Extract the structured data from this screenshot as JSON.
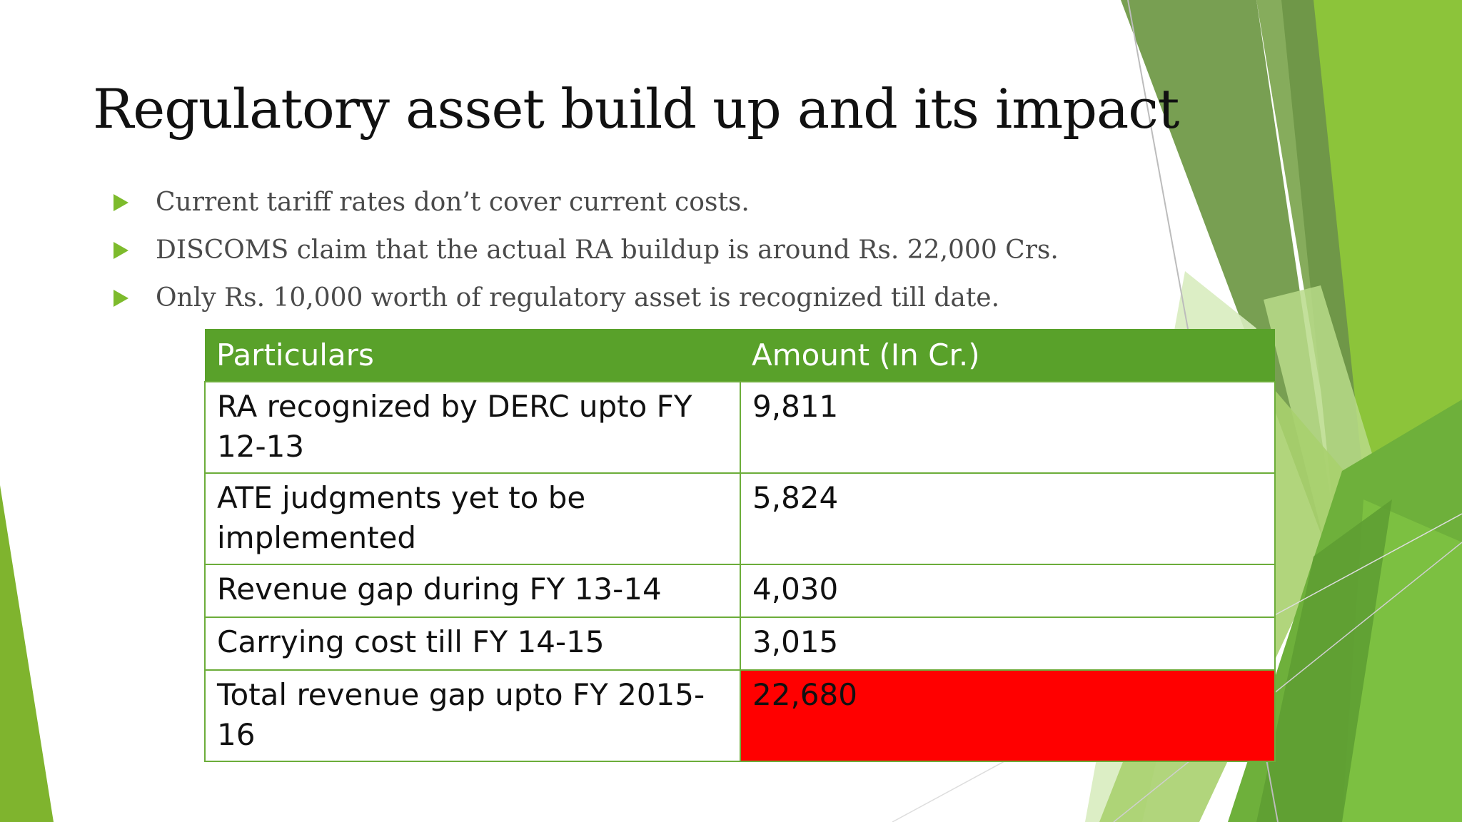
{
  "slide": {
    "title": "Regulatory asset build up and its impact",
    "bullets": [
      "Current tariff rates don’t cover current costs.",
      "DISCOMS claim that the actual RA buildup is around Rs. 22,000 Crs.",
      "Only Rs. 10,000 worth of regulatory asset is recognized till date."
    ],
    "table": {
      "headers": [
        "Particulars",
        "Amount (In Cr.)"
      ],
      "rows": [
        {
          "particular": "RA recognized by DERC upto FY 12-13",
          "amount": "9,811"
        },
        {
          "particular": "ATE judgments yet to be implemented",
          "amount": "5,824"
        },
        {
          "particular": "Revenue gap during FY 13-14",
          "amount": "4,030"
        },
        {
          "particular": "Carrying cost till FY 14-15",
          "amount": "3,015"
        },
        {
          "particular": "Total revenue gap upto FY 2015-16",
          "amount": "22,680"
        }
      ]
    }
  },
  "colors": {
    "accent_green": "#7dbb2c",
    "header_green": "#59a12a",
    "highlight_red": "#ff0000"
  },
  "icons": {
    "bullet": "triangle-right-icon"
  }
}
